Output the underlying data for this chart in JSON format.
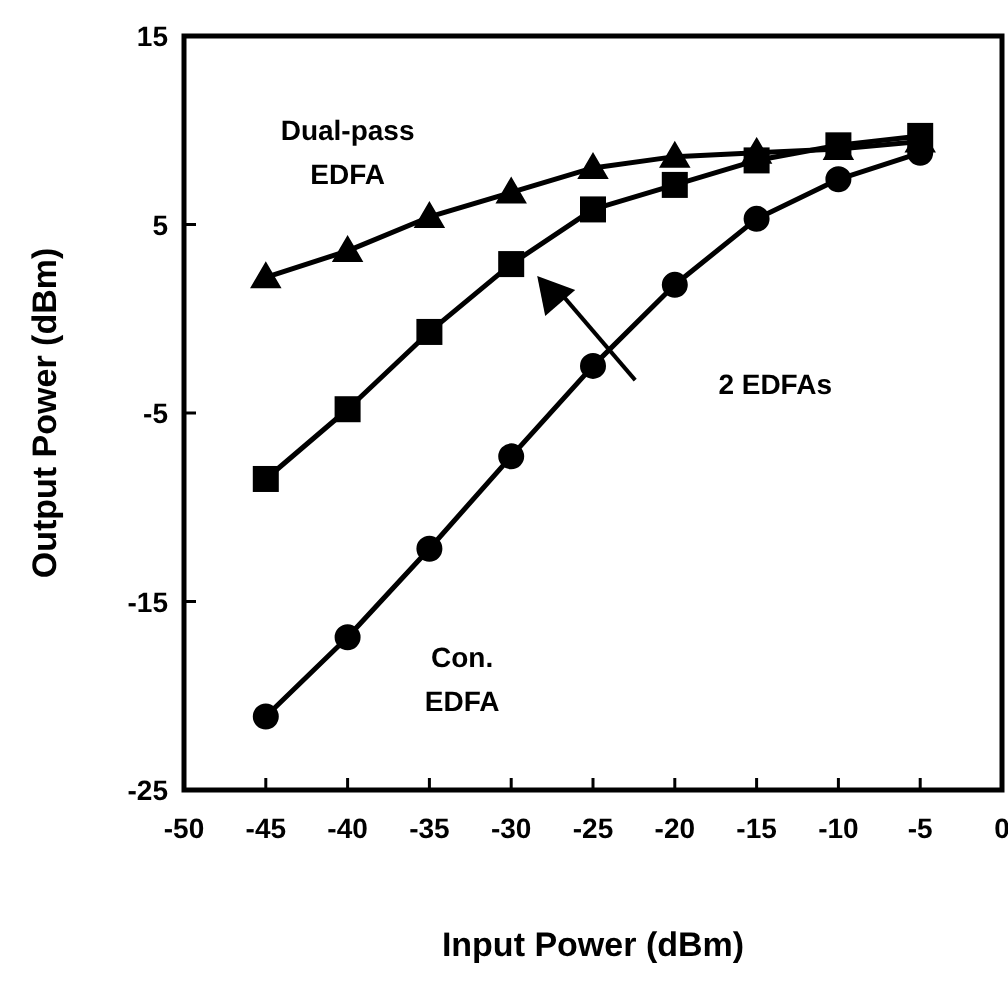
{
  "chart_data": {
    "type": "line",
    "xlabel": "Input Power (dBm)",
    "ylabel": "Output Power (dBm)",
    "x": [
      -45,
      -40,
      -35,
      -30,
      -25,
      -20,
      -15,
      -10,
      -5
    ],
    "xlim": [
      -50,
      0
    ],
    "xticks": [
      -50,
      -45,
      -40,
      -35,
      -30,
      -25,
      -20,
      -15,
      -10,
      -5,
      0
    ],
    "ylim": [
      -25,
      15
    ],
    "yticks": [
      -25,
      -15,
      -5,
      5,
      15
    ],
    "grid": false,
    "line_style": "solid",
    "series": [
      {
        "name": "Dual-pass\nEDFA",
        "color": "#000000",
        "marker": "triangle",
        "values": [
          2.2,
          3.6,
          5.4,
          6.7,
          8.0,
          8.6,
          8.8,
          9.0,
          9.4
        ]
      },
      {
        "color": "#000000",
        "marker": "square",
        "values": [
          -8.5,
          -4.8,
          -0.7,
          2.9,
          5.8,
          7.1,
          8.4,
          9.2,
          9.7
        ]
      },
      {
        "name": "Con.\nEDFA",
        "color": "#000000",
        "marker": "circle",
        "values": [
          -21.1,
          -16.9,
          -12.2,
          -7.3,
          -2.5,
          1.8,
          5.3,
          7.4,
          8.8
        ]
      }
    ],
    "annotations": [
      "2 EDFAs"
    ]
  }
}
